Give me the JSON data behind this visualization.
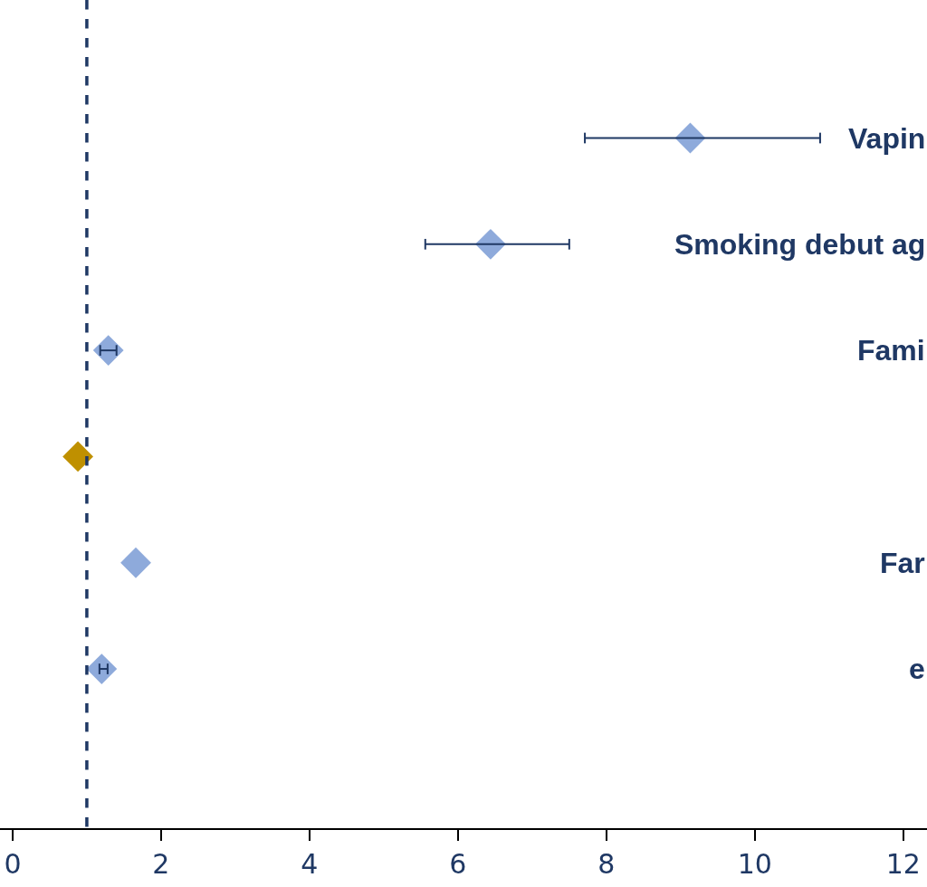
{
  "chart_data": {
    "type": "scatter",
    "orientation": "horizontal",
    "marker": "diamond",
    "categories": [
      "Vapin",
      "Smoking debut ag",
      "Fami",
      null,
      "Far",
      "e"
    ],
    "values": [
      9.13,
      6.44,
      1.29,
      0.88,
      1.66,
      1.2
    ],
    "colors": [
      "#8eaadb",
      "#8eaadb",
      "#8eaadb",
      "#bf9000",
      "#8eaadb",
      "#8eaadb"
    ],
    "errors": [
      [
        7.71,
        10.88
      ],
      [
        5.56,
        7.5
      ],
      [
        1.18,
        1.4
      ],
      null,
      null,
      [
        1.17,
        1.28
      ]
    ],
    "xlim": [
      -0.17,
      12.32
    ],
    "xticks": [
      0,
      2,
      4,
      6,
      8,
      10,
      12
    ],
    "ref_lines": [
      {
        "axis": "x",
        "value": 1,
        "color": "#1f3864",
        "line_style": "dashed"
      }
    ]
  }
}
